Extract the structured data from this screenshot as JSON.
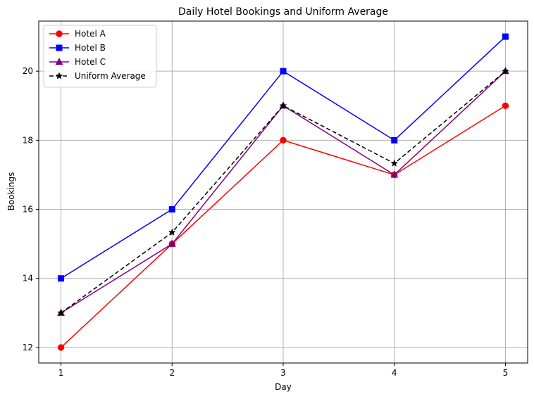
{
  "chart_data": {
    "type": "line",
    "title": "Daily Hotel Bookings and Uniform Average",
    "xlabel": "Day",
    "ylabel": "Bookings",
    "x": [
      1,
      2,
      3,
      4,
      5
    ],
    "xticks": [
      "1",
      "2",
      "3",
      "4",
      "5"
    ],
    "yticks": [
      "12",
      "14",
      "16",
      "18",
      "20"
    ],
    "xlim": [
      0.8,
      5.2
    ],
    "ylim": [
      11.55,
      21.45
    ],
    "grid": true,
    "legend_position": "upper-left",
    "series": [
      {
        "name": "Hotel A",
        "values": [
          12,
          15,
          18,
          17,
          19
        ],
        "color": "#ff0000",
        "marker": "circle",
        "linestyle": "solid"
      },
      {
        "name": "Hotel B",
        "values": [
          14,
          16,
          20,
          18,
          21
        ],
        "color": "#0000ff",
        "marker": "square",
        "linestyle": "solid"
      },
      {
        "name": "Hotel C",
        "values": [
          13,
          15,
          19,
          17,
          20
        ],
        "color": "#800080",
        "marker": "triangle",
        "linestyle": "solid"
      },
      {
        "name": "Uniform Average",
        "values": [
          13.0,
          15.33,
          19.0,
          17.33,
          20.0
        ],
        "color": "#000000",
        "marker": "star",
        "linestyle": "dashed"
      }
    ]
  }
}
